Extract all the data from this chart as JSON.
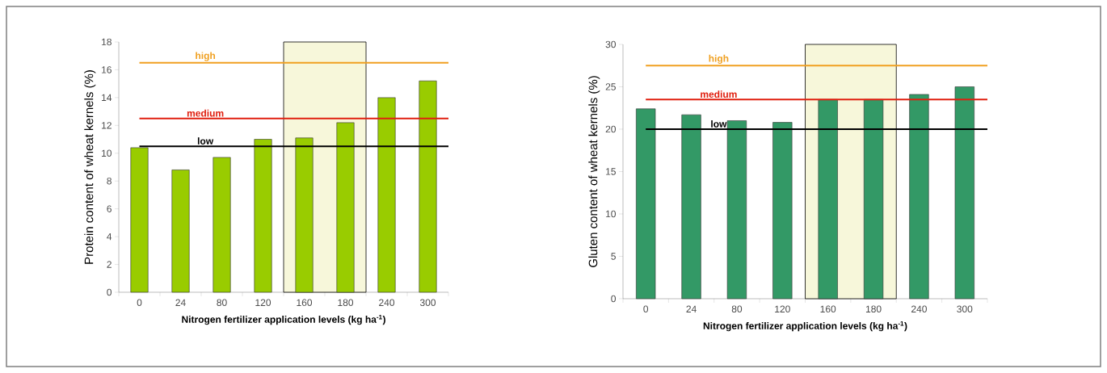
{
  "chart_data": [
    {
      "type": "bar",
      "xlabel": "Nitrogen fertilizer application levels (kg ha$^{-1}$)",
      "ylabel": "Protein content of wheat kernels (%)",
      "categories": [
        "0",
        "24",
        "80",
        "120",
        "160",
        "180",
        "240",
        "300"
      ],
      "values": [
        10.4,
        8.8,
        9.7,
        11.0,
        11.1,
        12.2,
        14.0,
        15.2
      ],
      "color": "#99cc00",
      "ylim": [
        0,
        18
      ],
      "yticks": [
        0,
        2,
        4,
        6,
        8,
        10,
        12,
        14,
        16,
        18
      ],
      "ref_lines": [
        {
          "axis": "y",
          "value": 16.5,
          "label": "high",
          "color": "#f0a020"
        },
        {
          "axis": "y",
          "value": 12.5,
          "label": "medium",
          "color": "#e02010"
        },
        {
          "axis": "y",
          "value": 10.5,
          "label": "low",
          "color": "#000000"
        }
      ],
      "bands": [
        {
          "axis": "x",
          "from": "160",
          "to": "180",
          "color": "#f7f7da"
        }
      ]
    },
    {
      "type": "bar",
      "xlabel": "Nitrogen fertilizer application levels (kg ha$^{-1}$)",
      "ylabel": "Gluten content of wheat kernels (%)",
      "categories": [
        "0",
        "24",
        "80",
        "120",
        "160",
        "180",
        "240",
        "300"
      ],
      "values": [
        22.4,
        21.7,
        21.0,
        20.8,
        23.5,
        23.5,
        24.1,
        25.0
      ],
      "color": "#339966",
      "ylim": [
        0,
        30
      ],
      "yticks": [
        0,
        5,
        10,
        15,
        20,
        25,
        30
      ],
      "ref_lines": [
        {
          "axis": "y",
          "value": 27.5,
          "label": "high",
          "color": "#f0a020"
        },
        {
          "axis": "y",
          "value": 23.5,
          "label": "medium",
          "color": "#e02010"
        },
        {
          "axis": "y",
          "value": 20,
          "label": "low",
          "color": "#000000"
        }
      ],
      "bands": [
        {
          "axis": "x",
          "from": "160",
          "to": "180",
          "color": "#f7f7da"
        }
      ]
    }
  ]
}
